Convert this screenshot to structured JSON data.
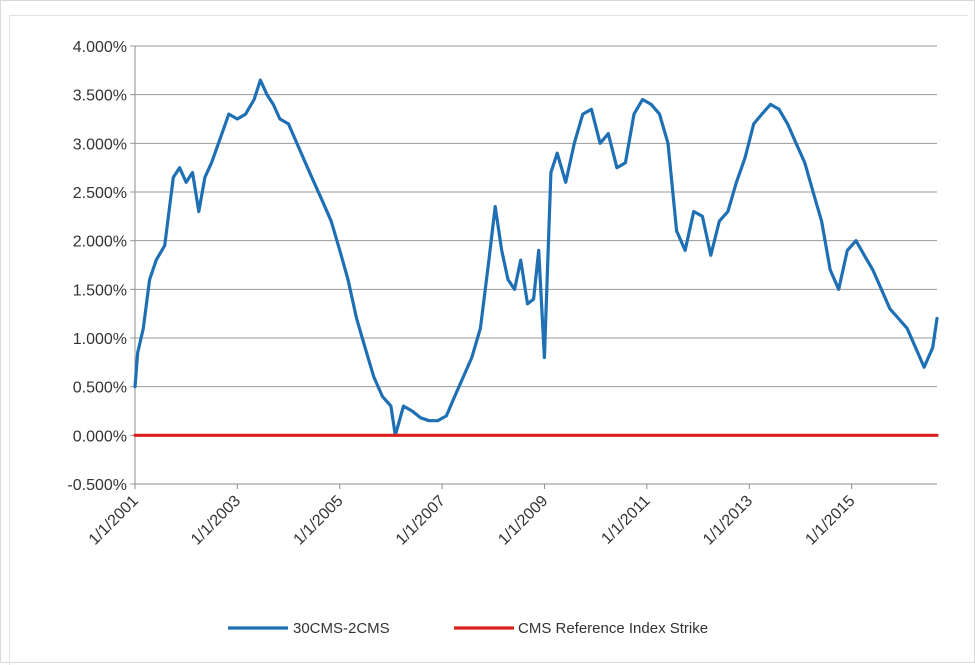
{
  "chart_data": {
    "type": "line",
    "title": "",
    "xlabel": "",
    "ylabel": "",
    "x_range": [
      "2001-01-01",
      "2016-09-01"
    ],
    "ylim": [
      -0.005,
      0.04
    ],
    "grid": true,
    "legend_position": "bottom",
    "x_tick_labels": [
      "1/1/2001",
      "1/1/2003",
      "1/1/2005",
      "1/1/2007",
      "1/1/2009",
      "1/1/2011",
      "1/1/2013",
      "1/1/2015"
    ],
    "y_tick_labels": [
      "-0.500%",
      "0.000%",
      "0.500%",
      "1.000%",
      "1.500%",
      "2.000%",
      "2.500%",
      "3.000%",
      "3.500%",
      "4.000%"
    ],
    "series": [
      {
        "name": "30CMS-2CMS",
        "color": "#1f6fb5",
        "x": [
          "2001-01-01",
          "2001-01-20",
          "2001-03-01",
          "2001-04-15",
          "2001-06-01",
          "2001-08-01",
          "2001-10-01",
          "2001-11-15",
          "2002-01-01",
          "2002-02-15",
          "2002-04-01",
          "2002-05-15",
          "2002-07-01",
          "2002-09-01",
          "2002-11-01",
          "2003-01-01",
          "2003-03-01",
          "2003-05-01",
          "2003-06-15",
          "2003-08-01",
          "2003-09-15",
          "2003-11-01",
          "2004-01-01",
          "2004-03-01",
          "2004-05-01",
          "2004-07-01",
          "2004-09-01",
          "2004-11-01",
          "2005-01-01",
          "2005-03-01",
          "2005-05-01",
          "2005-07-01",
          "2005-09-01",
          "2005-11-01",
          "2006-01-01",
          "2006-02-01",
          "2006-04-01",
          "2006-06-01",
          "2006-08-01",
          "2006-10-01",
          "2006-12-01",
          "2007-02-01",
          "2007-04-01",
          "2007-06-01",
          "2007-08-01",
          "2007-10-01",
          "2007-12-01",
          "2008-01-15",
          "2008-03-01",
          "2008-04-15",
          "2008-06-01",
          "2008-07-15",
          "2008-09-01",
          "2008-10-15",
          "2008-11-20",
          "2008-12-31",
          "2009-02-15",
          "2009-04-01",
          "2009-06-01",
          "2009-08-01",
          "2009-10-01",
          "2009-12-01",
          "2010-02-01",
          "2010-04-01",
          "2010-06-01",
          "2010-08-01",
          "2010-10-01",
          "2010-12-01",
          "2011-02-01",
          "2011-04-01",
          "2011-06-01",
          "2011-08-01",
          "2011-10-01",
          "2011-12-01",
          "2012-02-01",
          "2012-04-01",
          "2012-06-01",
          "2012-08-01",
          "2012-10-01",
          "2012-12-01",
          "2013-02-01",
          "2013-04-01",
          "2013-06-01",
          "2013-08-01",
          "2013-10-01",
          "2013-12-01",
          "2014-02-01",
          "2014-04-01",
          "2014-06-01",
          "2014-08-01",
          "2014-10-01",
          "2014-12-01",
          "2015-02-01",
          "2015-04-01",
          "2015-06-01",
          "2015-08-01",
          "2015-10-01",
          "2015-12-01",
          "2016-02-01",
          "2016-04-01",
          "2016-06-01",
          "2016-08-01",
          "2016-09-01"
        ],
        "values": [
          0.005,
          0.0085,
          0.011,
          0.016,
          0.018,
          0.0195,
          0.0265,
          0.0275,
          0.026,
          0.027,
          0.023,
          0.0265,
          0.028,
          0.0305,
          0.033,
          0.0325,
          0.033,
          0.0345,
          0.0365,
          0.035,
          0.034,
          0.0325,
          0.032,
          0.03,
          0.028,
          0.026,
          0.024,
          0.022,
          0.019,
          0.016,
          0.012,
          0.009,
          0.006,
          0.004,
          0.003,
          0.0,
          0.003,
          0.0025,
          0.0018,
          0.0015,
          0.0015,
          0.002,
          0.004,
          0.006,
          0.008,
          0.011,
          0.018,
          0.0235,
          0.019,
          0.016,
          0.015,
          0.018,
          0.0135,
          0.014,
          0.019,
          0.008,
          0.027,
          0.029,
          0.026,
          0.03,
          0.033,
          0.0335,
          0.03,
          0.031,
          0.0275,
          0.028,
          0.033,
          0.0345,
          0.034,
          0.033,
          0.03,
          0.021,
          0.019,
          0.023,
          0.0225,
          0.0185,
          0.022,
          0.023,
          0.026,
          0.0285,
          0.032,
          0.033,
          0.034,
          0.0335,
          0.032,
          0.03,
          0.028,
          0.025,
          0.022,
          0.017,
          0.015,
          0.019,
          0.02,
          0.0185,
          0.017,
          0.015,
          0.013,
          0.012,
          0.011,
          0.009,
          0.007,
          0.009,
          0.012
        ]
      },
      {
        "name": "CMS Reference Index Strike",
        "color": "#d9201f",
        "x": [
          "2001-01-01",
          "2016-09-01"
        ],
        "values": [
          0.0,
          0.0
        ]
      }
    ]
  }
}
